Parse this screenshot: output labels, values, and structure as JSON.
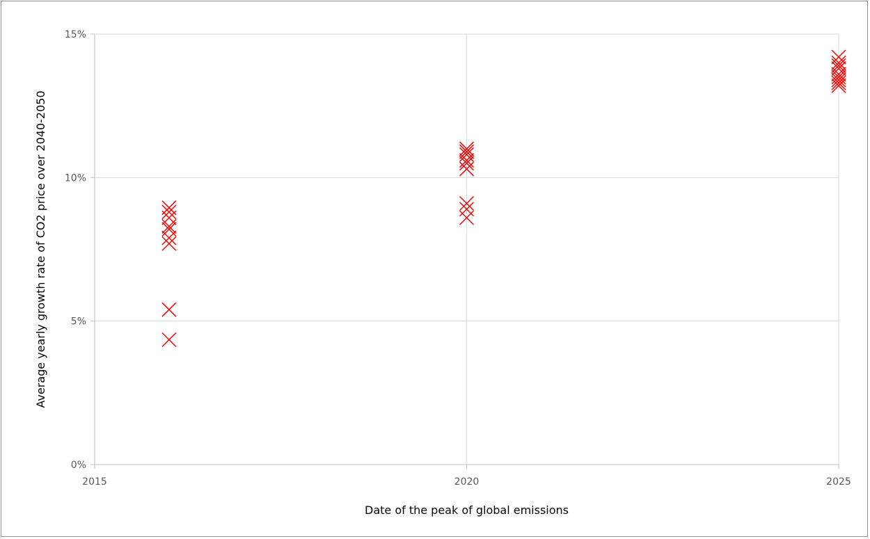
{
  "chart_data": {
    "type": "scatter",
    "title": "",
    "xlabel": "Date of the peak of global emissions",
    "ylabel": "Average yearly growth rate of CO2 price over 2040-2050",
    "xlim": [
      2015,
      2025
    ],
    "ylim": [
      0,
      15
    ],
    "x_ticks": [
      "2015",
      "2020",
      "2025"
    ],
    "y_ticks": [
      "0%",
      "5%",
      "10%",
      "15%"
    ],
    "grid": true,
    "legend": "none",
    "marker": "x",
    "color": "#ff0000",
    "series": [
      {
        "x": [
          2016,
          2016,
          2016,
          2016,
          2016,
          2016,
          2016,
          2016,
          2016,
          2020,
          2020,
          2020,
          2020,
          2020,
          2020,
          2020,
          2020,
          2020,
          2025,
          2025,
          2025,
          2025,
          2025,
          2025,
          2025,
          2025,
          2025
        ],
        "y": [
          8.95,
          8.8,
          8.6,
          8.2,
          7.9,
          7.7,
          5.4,
          4.35,
          8.3,
          11.0,
          10.9,
          10.8,
          10.6,
          10.5,
          10.3,
          9.1,
          8.6,
          8.9,
          14.2,
          14.0,
          13.9,
          13.8,
          13.6,
          13.5,
          13.4,
          13.3,
          13.2
        ]
      }
    ]
  }
}
